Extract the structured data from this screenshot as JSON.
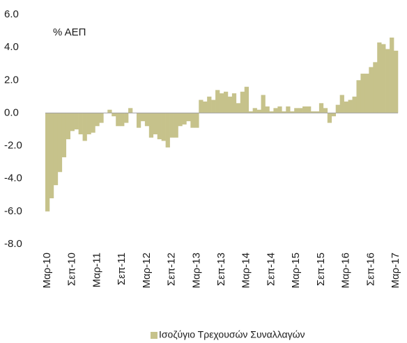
{
  "chart_data": {
    "type": "bar",
    "annotation": "% ΑΕΠ",
    "categories": [
      "Μαρ-10",
      null,
      null,
      null,
      null,
      null,
      "Σεπ-10",
      null,
      null,
      null,
      null,
      null,
      "Μαρ-11",
      null,
      null,
      null,
      null,
      null,
      "Σεπ-11",
      null,
      null,
      null,
      null,
      null,
      "Μαρ-12",
      null,
      null,
      null,
      null,
      null,
      "Σεπ-12",
      null,
      null,
      null,
      null,
      null,
      "Μαρ-13",
      null,
      null,
      null,
      null,
      null,
      "Σεπ-13",
      null,
      null,
      null,
      null,
      null,
      "Μαρ-14",
      null,
      null,
      null,
      null,
      null,
      "Σεπ-14",
      null,
      null,
      null,
      null,
      null,
      "Μαρ-15",
      null,
      null,
      null,
      null,
      null,
      "Σεπ-15",
      null,
      null,
      null,
      null,
      null,
      "Μαρ-16",
      null,
      null,
      null,
      null,
      null,
      "Σεπ-16",
      null,
      null,
      null,
      null,
      null,
      "Μαρ-17"
    ],
    "series": [
      {
        "name": "Ισοζύγιο Τρεχουσών Συναλλαγών",
        "color": "#c6c28b",
        "values": [
          -6.0,
          -5.2,
          -4.4,
          -3.6,
          -2.7,
          -1.6,
          -1.1,
          -1.0,
          -1.3,
          -1.7,
          -1.3,
          -1.2,
          -0.8,
          -0.6,
          0.0,
          0.2,
          -0.2,
          -0.8,
          -0.8,
          -0.6,
          0.3,
          0.0,
          -0.9,
          -0.5,
          -0.8,
          -1.5,
          -1.3,
          -1.6,
          -1.7,
          -2.1,
          -1.5,
          -1.5,
          -0.8,
          -0.7,
          -0.5,
          -0.9,
          -0.9,
          0.8,
          0.7,
          1.0,
          0.8,
          1.4,
          1.2,
          1.3,
          1.0,
          1.2,
          0.6,
          1.3,
          1.6,
          0.1,
          0.3,
          0.2,
          1.1,
          0.4,
          0.1,
          0.3,
          0.4,
          0.1,
          0.4,
          0.1,
          0.3,
          0.3,
          0.4,
          0.4,
          0.1,
          0.1,
          0.6,
          0.3,
          -0.6,
          -0.2,
          0.5,
          1.1,
          0.7,
          0.8,
          1.0,
          2.0,
          2.4,
          2.4,
          2.8,
          3.1,
          4.3,
          4.2,
          3.9,
          4.6,
          3.8
        ]
      }
    ],
    "ylim": [
      -8,
      6
    ],
    "yticks": [
      {
        "value": -8,
        "label": "-8.0"
      },
      {
        "value": -6,
        "label": "-6.0"
      },
      {
        "value": -4,
        "label": "-4.0"
      },
      {
        "value": -2,
        "label": "-2.0"
      },
      {
        "value": 0,
        "label": "0.0"
      },
      {
        "value": 2,
        "label": "2.0"
      },
      {
        "value": 4,
        "label": "4.0"
      },
      {
        "value": 6,
        "label": "6.0"
      }
    ],
    "grid": false,
    "legend": "bottom"
  }
}
